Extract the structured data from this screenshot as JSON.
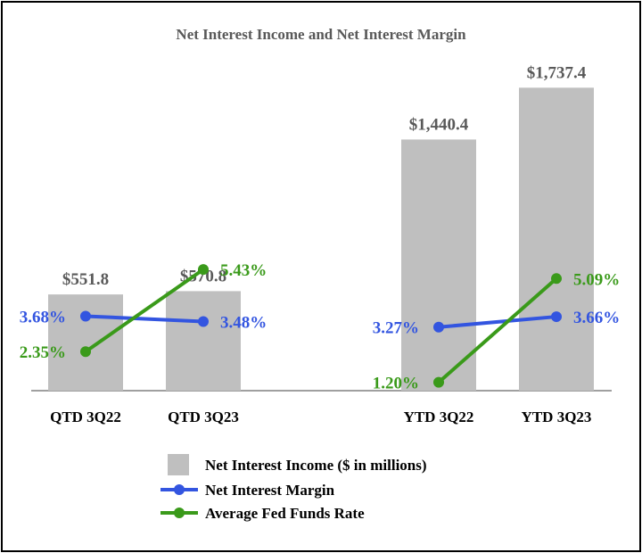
{
  "colors": {
    "bar": "#BFBFBF",
    "margin_line": "#3355E0",
    "fed_line": "#3A9A1A",
    "axis": "#808080",
    "value_text": "#595959"
  },
  "chart_data": {
    "type": "bar",
    "title": "Net Interest Income and Net Interest Margin",
    "categories": [
      "QTD 3Q22",
      "QTD 3Q23",
      "YTD 3Q22",
      "YTD 3Q23"
    ],
    "ylim": [
      0,
      1900
    ],
    "series": [
      {
        "name": "Net Interest Income ($ in millions)",
        "type": "bar",
        "values": [
          551.8,
          570.8,
          1440.4,
          1737.4
        ],
        "labels": [
          "$551.8",
          "$570.8",
          "$1,440.4",
          "$1,737.4"
        ]
      },
      {
        "name": "Net Interest Margin",
        "type": "line",
        "values": [
          3.68,
          3.48,
          3.27,
          3.66
        ],
        "labels": [
          "3.68%",
          "3.48%",
          "3.27%",
          "3.66%"
        ]
      },
      {
        "name": "Average Fed Funds Rate",
        "type": "line",
        "values": [
          2.35,
          5.43,
          1.2,
          5.09
        ],
        "labels": [
          "2.35%",
          "5.43%",
          "1.20%",
          "5.09%"
        ]
      }
    ],
    "groups": [
      [
        "QTD 3Q22",
        "QTD 3Q23"
      ],
      [
        "YTD 3Q22",
        "YTD 3Q23"
      ]
    ],
    "legend_position": "bottom"
  }
}
